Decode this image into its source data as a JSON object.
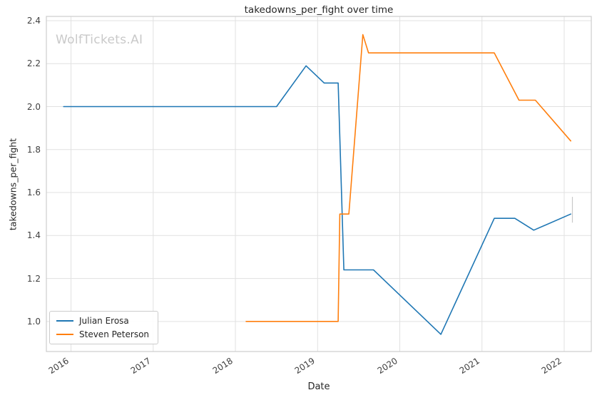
{
  "colors": {
    "blue": "#1f77b4",
    "orange": "#ff7f0e",
    "grid": "#e1e1e1",
    "border": "#cdcdcd",
    "text": "#262626",
    "tick_text": "#404040",
    "watermark": "#c9c9c9"
  },
  "chart_data": {
    "type": "line",
    "title": "takedowns_per_fight over time",
    "xlabel": "Date",
    "ylabel": "takedowns_per_fight",
    "watermark": "WolfTickets.AI",
    "xlim": [
      2015.7,
      2022.33
    ],
    "ylim": [
      0.86,
      2.42
    ],
    "xticks": [
      2016,
      2017,
      2018,
      2019,
      2020,
      2021,
      2022
    ],
    "yticks": [
      1.0,
      1.2,
      1.4,
      1.6,
      1.8,
      2.0,
      2.2,
      2.4
    ],
    "grid": true,
    "legend_position": "lower left",
    "series": [
      {
        "name": "Julian Erosa",
        "color": "#1f77b4",
        "x": [
          2015.91,
          2018.5,
          2018.86,
          2019.08,
          2019.25,
          2019.32,
          2019.68,
          2020.5,
          2021.15,
          2021.4,
          2021.63,
          2022.08
        ],
        "y": [
          2.0,
          2.0,
          2.19,
          2.11,
          2.11,
          1.24,
          1.24,
          0.94,
          1.48,
          1.48,
          1.425,
          1.5
        ]
      },
      {
        "name": "Steven Peterson",
        "color": "#ff7f0e",
        "x": [
          2018.13,
          2019.25,
          2019.27,
          2019.38,
          2019.55,
          2019.62,
          2021.15,
          2021.45,
          2021.65,
          2022.08
        ],
        "y": [
          1.0,
          1.0,
          1.5,
          1.5,
          2.335,
          2.25,
          2.25,
          2.03,
          2.03,
          1.84
        ]
      }
    ],
    "end_marker": {
      "x": 2022.1,
      "y1": 1.46,
      "y2": 1.58,
      "color": "#c8c8c8"
    }
  }
}
